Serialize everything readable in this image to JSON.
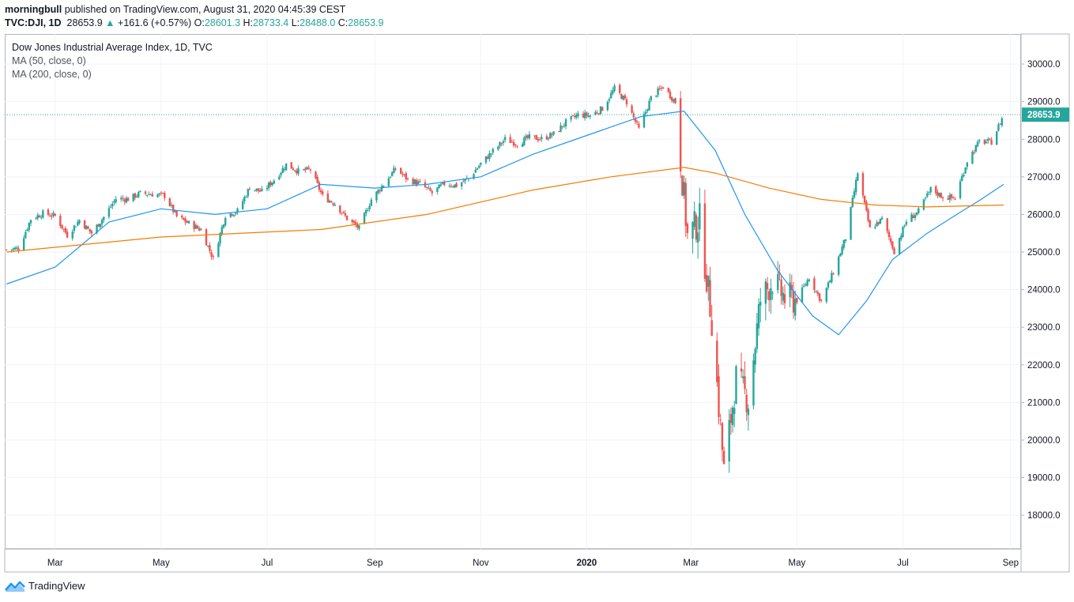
{
  "header": {
    "author": "morningbull",
    "published": "published on TradingView.com, August 31, 2020 04:45:39 CEST"
  },
  "quote": {
    "symbol": "TVC:DJI, 1D",
    "last": "28653.9",
    "arrow": "▲",
    "change": "+161.6 (+0.57%)",
    "open_label": "O:",
    "open": "28601.3",
    "high_label": "H:",
    "high": "28733.4",
    "low_label": "L:",
    "low": "28488.0",
    "close_label": "C:",
    "close": "28653.9"
  },
  "legend": {
    "title": "Dow Jones Industrial Average Index, 1D, TVC",
    "ma50": "MA (50, close, 0)",
    "ma200": "MA (200, close, 0)"
  },
  "footer": {
    "brand": "TradingView",
    "logo_icon": "tradingview-logo-icon"
  },
  "colors": {
    "up": "#26a69a",
    "down": "#ef5350",
    "ma50": "#2196f3",
    "ma200": "#f57c00",
    "last_tag": "#26a69a"
  },
  "chart_data": {
    "type": "candlestick",
    "ylim": [
      17100,
      30800
    ],
    "y_ticks": [
      18000,
      19000,
      20000,
      21000,
      22000,
      23000,
      24000,
      25000,
      26000,
      27000,
      28000,
      29000,
      30000
    ],
    "y_tick_labels": [
      "18000.0",
      "19000.0",
      "20000.0",
      "21000.0",
      "22000.0",
      "23000.0",
      "24000.0",
      "25000.0",
      "26000.0",
      "27000.0",
      "28000.0",
      "29000.0",
      "30000.0"
    ],
    "x_labels": [
      {
        "label": "Mar",
        "date": "2019-03-01",
        "bold": false
      },
      {
        "label": "May",
        "date": "2019-05-01",
        "bold": false
      },
      {
        "label": "Jul",
        "date": "2019-07-01",
        "bold": false
      },
      {
        "label": "Sep",
        "date": "2019-09-01",
        "bold": false
      },
      {
        "label": "Nov",
        "date": "2019-11-01",
        "bold": false
      },
      {
        "label": "2020",
        "date": "2020-01-01",
        "bold": true
      },
      {
        "label": "Mar",
        "date": "2020-03-01",
        "bold": false
      },
      {
        "label": "May",
        "date": "2020-05-01",
        "bold": false
      },
      {
        "label": "Jul",
        "date": "2020-07-01",
        "bold": false
      },
      {
        "label": "Sep",
        "date": "2020-09-01",
        "bold": false
      }
    ],
    "x_range": [
      "2019-01-31",
      "2020-09-07"
    ],
    "last_value": 28653.9,
    "last_value_label": "28653.9",
    "series": [
      {
        "name": "close",
        "type": "candles",
        "points": [
          [
            "2019-02-01",
            25060
          ],
          [
            "2019-02-08",
            25100
          ],
          [
            "2019-02-15",
            25880
          ],
          [
            "2019-02-22",
            26030
          ],
          [
            "2019-03-01",
            25960
          ],
          [
            "2019-03-08",
            25450
          ],
          [
            "2019-03-15",
            25850
          ],
          [
            "2019-03-22",
            25500
          ],
          [
            "2019-03-29",
            25930
          ],
          [
            "2019-04-05",
            26420
          ],
          [
            "2019-04-12",
            26410
          ],
          [
            "2019-04-19",
            26560
          ],
          [
            "2019-04-26",
            26540
          ],
          [
            "2019-05-03",
            26500
          ],
          [
            "2019-05-10",
            25940
          ],
          [
            "2019-05-17",
            25760
          ],
          [
            "2019-05-24",
            25590
          ],
          [
            "2019-05-31",
            24820
          ],
          [
            "2019-06-07",
            25980
          ],
          [
            "2019-06-14",
            26090
          ],
          [
            "2019-06-21",
            26720
          ],
          [
            "2019-06-28",
            26600
          ],
          [
            "2019-07-05",
            26920
          ],
          [
            "2019-07-12",
            27330
          ],
          [
            "2019-07-19",
            27150
          ],
          [
            "2019-07-26",
            27190
          ],
          [
            "2019-08-02",
            26480
          ],
          [
            "2019-08-09",
            26290
          ],
          [
            "2019-08-16",
            25890
          ],
          [
            "2019-08-23",
            25630
          ],
          [
            "2019-08-30",
            26400
          ],
          [
            "2019-09-06",
            26800
          ],
          [
            "2019-09-13",
            27220
          ],
          [
            "2019-09-20",
            26930
          ],
          [
            "2019-09-27",
            26820
          ],
          [
            "2019-10-04",
            26570
          ],
          [
            "2019-10-11",
            26820
          ],
          [
            "2019-10-18",
            26770
          ],
          [
            "2019-10-25",
            26960
          ],
          [
            "2019-11-01",
            27350
          ],
          [
            "2019-11-08",
            27680
          ],
          [
            "2019-11-15",
            28000
          ],
          [
            "2019-11-22",
            27880
          ],
          [
            "2019-11-29",
            28050
          ],
          [
            "2019-12-06",
            28010
          ],
          [
            "2019-12-13",
            28140
          ],
          [
            "2019-12-20",
            28450
          ],
          [
            "2019-12-27",
            28650
          ],
          [
            "2020-01-03",
            28630
          ],
          [
            "2020-01-10",
            28820
          ],
          [
            "2020-01-17",
            29350
          ],
          [
            "2020-01-24",
            28990
          ],
          [
            "2020-01-31",
            28260
          ],
          [
            "2020-02-07",
            29100
          ],
          [
            "2020-02-14",
            29400
          ],
          [
            "2020-02-21",
            28990
          ],
          [
            "2020-02-28",
            25410
          ],
          [
            "2020-03-06",
            25860
          ],
          [
            "2020-03-13",
            23190
          ],
          [
            "2020-03-20",
            19170
          ],
          [
            "2020-03-27",
            21640
          ],
          [
            "2020-04-03",
            21050
          ],
          [
            "2020-04-10",
            23720
          ],
          [
            "2020-04-17",
            24240
          ],
          [
            "2020-04-24",
            23780
          ],
          [
            "2020-05-01",
            23720
          ],
          [
            "2020-05-08",
            24330
          ],
          [
            "2020-05-15",
            23690
          ],
          [
            "2020-05-22",
            24470
          ],
          [
            "2020-05-29",
            25380
          ],
          [
            "2020-06-05",
            27110
          ],
          [
            "2020-06-12",
            25610
          ],
          [
            "2020-06-19",
            25870
          ],
          [
            "2020-06-26",
            25020
          ],
          [
            "2020-07-03",
            25830
          ],
          [
            "2020-07-10",
            26080
          ],
          [
            "2020-07-17",
            26670
          ],
          [
            "2020-07-24",
            26470
          ],
          [
            "2020-07-31",
            26430
          ],
          [
            "2020-08-07",
            27430
          ],
          [
            "2020-08-14",
            27930
          ],
          [
            "2020-08-21",
            27930
          ],
          [
            "2020-08-28",
            28650
          ]
        ]
      },
      {
        "name": "MA (50, close, 0)",
        "type": "line",
        "points": [
          [
            "2019-02-01",
            24150
          ],
          [
            "2019-03-01",
            24600
          ],
          [
            "2019-04-01",
            25800
          ],
          [
            "2019-05-01",
            26150
          ],
          [
            "2019-06-01",
            26000
          ],
          [
            "2019-07-01",
            26150
          ],
          [
            "2019-08-01",
            26800
          ],
          [
            "2019-09-01",
            26700
          ],
          [
            "2019-10-01",
            26800
          ],
          [
            "2019-11-01",
            27000
          ],
          [
            "2019-12-01",
            27600
          ],
          [
            "2020-01-01",
            28100
          ],
          [
            "2020-02-01",
            28600
          ],
          [
            "2020-02-26",
            28750
          ],
          [
            "2020-03-15",
            27700
          ],
          [
            "2020-04-01",
            26000
          ],
          [
            "2020-04-20",
            24500
          ],
          [
            "2020-05-10",
            23300
          ],
          [
            "2020-05-25",
            22800
          ],
          [
            "2020-06-10",
            23700
          ],
          [
            "2020-06-25",
            24800
          ],
          [
            "2020-07-15",
            25500
          ],
          [
            "2020-08-01",
            26000
          ],
          [
            "2020-08-15",
            26400
          ],
          [
            "2020-08-28",
            26800
          ]
        ]
      },
      {
        "name": "MA (200, close, 0)",
        "type": "line",
        "points": [
          [
            "2019-02-01",
            25000
          ],
          [
            "2019-05-01",
            25400
          ],
          [
            "2019-08-01",
            25600
          ],
          [
            "2019-10-01",
            26000
          ],
          [
            "2019-12-01",
            26650
          ],
          [
            "2020-01-15",
            27000
          ],
          [
            "2020-02-26",
            27250
          ],
          [
            "2020-03-15",
            27100
          ],
          [
            "2020-04-15",
            26700
          ],
          [
            "2020-05-15",
            26400
          ],
          [
            "2020-06-15",
            26250
          ],
          [
            "2020-07-15",
            26200
          ],
          [
            "2020-08-28",
            26250
          ]
        ]
      }
    ]
  }
}
